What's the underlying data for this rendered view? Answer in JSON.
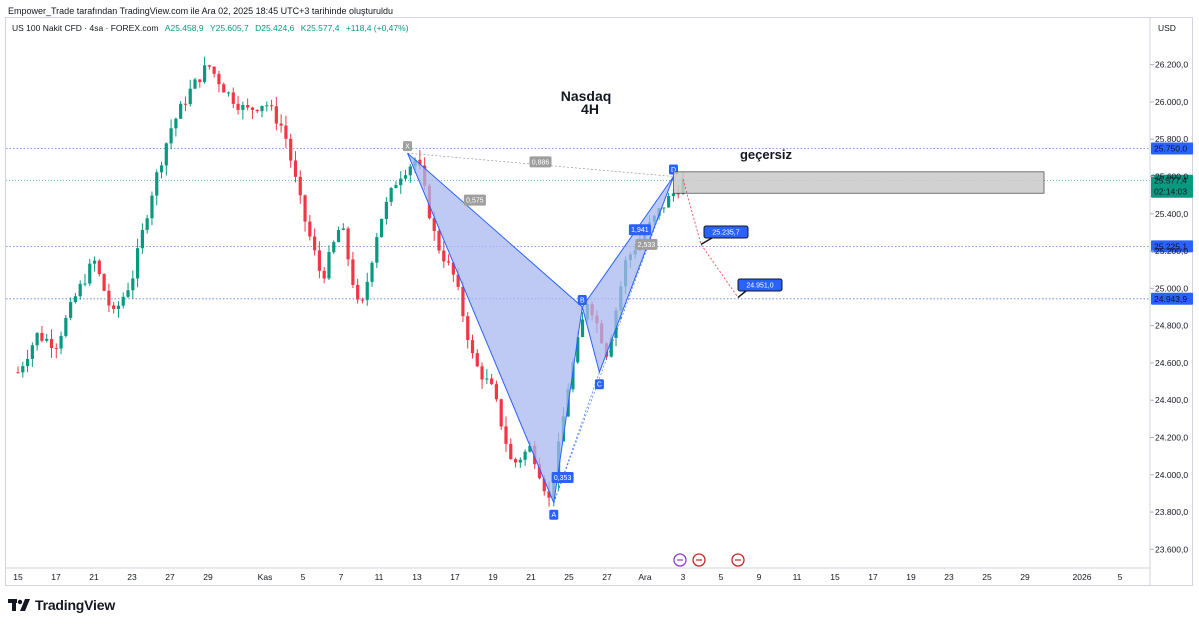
{
  "attribution": "Empower_Trade tarafından TradingView.com ile Ara 02, 2025 18:45 UTC+3 tarihinde oluşturuldu",
  "legend": {
    "symbol": "US 100 Nakit CFD · 4sa · FOREX.com",
    "open": "A25.458,9",
    "high": "Y25.605,7",
    "low": "D25.424,6",
    "close": "K25.577,4",
    "change": "+118,4 (+0,47%)"
  },
  "currency": "USD",
  "colors": {
    "up": "#089981",
    "down": "#f23645",
    "pattern_fill": "#a9b8f0",
    "pattern_line": "#2962ff",
    "zone": "#c9c9c9",
    "label_blue": "#2962ff"
  },
  "annotations": {
    "title_line1": "Nasdaq",
    "title_line2": "4H",
    "invalid_text": "geçersiz"
  },
  "chart_data": {
    "type": "candlestick",
    "y_axis": {
      "range": [
        23500,
        26450
      ],
      "ticks": [
        23600,
        23800,
        24000,
        24200,
        24400,
        24600,
        24800,
        25000,
        25200,
        25400,
        25600,
        25800,
        26000,
        26200
      ],
      "tick_labels": [
        "23.600,0",
        "23.800,0",
        "24.000,0",
        "24.200,0",
        "24.400,0",
        "24.600,0",
        "24.800,0",
        "25.000,0",
        "25.200,0",
        "25.400,0",
        "25.600,0",
        "25.800,0",
        "26.000,0",
        "26.200,0"
      ]
    },
    "x_axis": {
      "labels": [
        "15",
        "17",
        "21",
        "23",
        "27",
        "29",
        "Kas",
        "5",
        "7",
        "11",
        "13",
        "17",
        "19",
        "21",
        "25",
        "27",
        "Ara",
        "3",
        "5",
        "9",
        "11",
        "15",
        "17",
        "19",
        "23",
        "25",
        "29",
        "2026",
        "5"
      ],
      "label_index": [
        0,
        2,
        4,
        6,
        8,
        10,
        13,
        15,
        17,
        19,
        21,
        23,
        25,
        27,
        29,
        31,
        33,
        35,
        37,
        39,
        41,
        43,
        45,
        47,
        49,
        51,
        53,
        56,
        58
      ]
    },
    "path": [
      [
        0,
        24550
      ],
      [
        1,
        24750
      ],
      [
        2,
        24700
      ],
      [
        3,
        24950
      ],
      [
        4,
        25150
      ],
      [
        5,
        24850
      ],
      [
        6,
        25050
      ],
      [
        7,
        25500
      ],
      [
        8,
        25850
      ],
      [
        9,
        26050
      ],
      [
        10,
        26200
      ],
      [
        11,
        26050
      ],
      [
        12,
        25950
      ],
      [
        13,
        26000
      ],
      [
        14,
        25850
      ],
      [
        15,
        25400
      ],
      [
        16,
        25050
      ],
      [
        17,
        25350
      ],
      [
        18,
        24850
      ],
      [
        19,
        25350
      ],
      [
        20,
        25600
      ],
      [
        21,
        25700
      ],
      [
        22,
        25250
      ],
      [
        23,
        25050
      ],
      [
        24,
        24600
      ],
      [
        25,
        24450
      ],
      [
        26,
        24050
      ],
      [
        27,
        24150
      ],
      [
        28,
        23850
      ],
      [
        29,
        24500
      ],
      [
        30,
        24950
      ],
      [
        31,
        24650
      ],
      [
        32,
        25150
      ],
      [
        33,
        25300
      ],
      [
        34,
        25450
      ],
      [
        35,
        25570
      ]
    ],
    "last_price": {
      "value": "25.577,4",
      "countdown": "02:14:03"
    },
    "harmonic_pattern": {
      "points": {
        "X": [
          20.5,
          25725
        ],
        "A": [
          28.2,
          23850
        ],
        "B": [
          29.7,
          24900
        ],
        "C": [
          30.6,
          24550
        ],
        "D": [
          34.5,
          25600
        ]
      },
      "ratios": [
        "0,886",
        "0,575",
        "0,353",
        "1,941",
        "2,533"
      ]
    },
    "levels": [
      {
        "value": "25.750,0"
      },
      {
        "value": "25.225,1"
      },
      {
        "value": "24.943,9"
      }
    ],
    "targets": [
      {
        "label": "25.235,7"
      },
      {
        "label": "24.951,0"
      }
    ],
    "zone": {
      "from": 25510,
      "to": 25625
    }
  }
}
